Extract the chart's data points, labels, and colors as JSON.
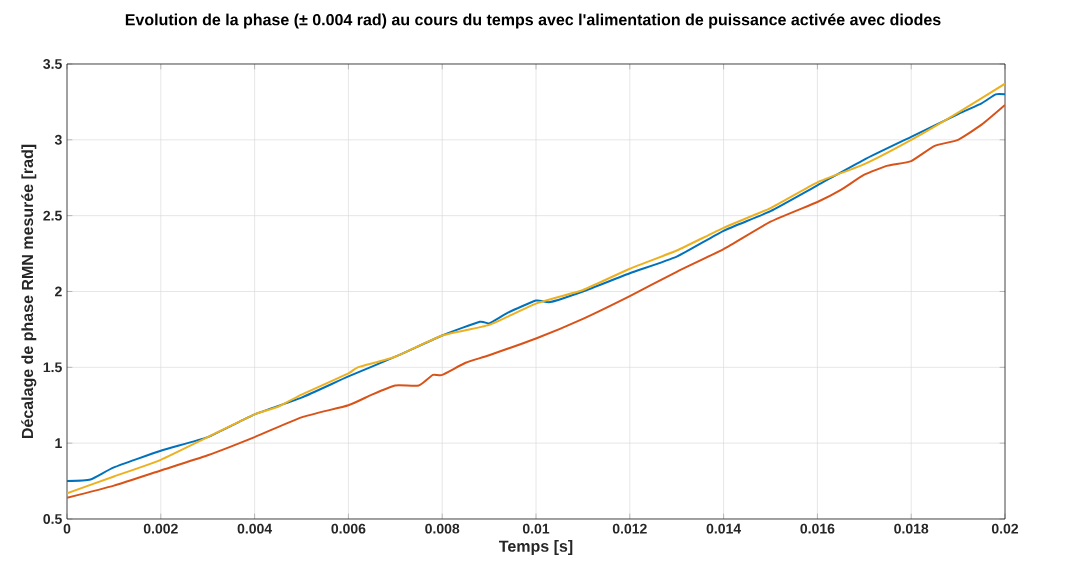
{
  "chart_data": {
    "type": "line",
    "title": "Evolution de la phase (± 0.004 rad) au cours du temps avec l'alimentation de puissance activée avec diodes",
    "xlabel": "Temps [s]",
    "ylabel": "Décalage de phase RMN mesurée [rad]",
    "xlim": [
      0,
      0.02
    ],
    "ylim": [
      0.5,
      3.5
    ],
    "xticks": [
      0,
      0.002,
      0.004,
      0.006,
      0.008,
      0.01,
      0.012,
      0.014,
      0.016,
      0.018,
      0.02
    ],
    "yticks": [
      0.5,
      1,
      1.5,
      2,
      2.5,
      3,
      3.5
    ],
    "grid": true,
    "line_style": "solid",
    "series": [
      {
        "color": "#0072bd",
        "x": [
          0,
          0.0005,
          0.001,
          0.002,
          0.003,
          0.004,
          0.005,
          0.006,
          0.007,
          0.008,
          0.0088,
          0.009,
          0.0094,
          0.01,
          0.0103,
          0.011,
          0.012,
          0.013,
          0.014,
          0.015,
          0.016,
          0.017,
          0.018,
          0.019,
          0.0195,
          0.0198,
          0.02
        ],
        "values": [
          0.75,
          0.76,
          0.84,
          0.95,
          1.04,
          1.19,
          1.3,
          1.44,
          1.57,
          1.71,
          1.8,
          1.79,
          1.86,
          1.94,
          1.93,
          2.0,
          2.12,
          2.23,
          2.4,
          2.53,
          2.7,
          2.87,
          3.02,
          3.17,
          3.24,
          3.3,
          3.3
        ]
      },
      {
        "color": "#d95319",
        "x": [
          0,
          0.001,
          0.002,
          0.003,
          0.004,
          0.005,
          0.006,
          0.0065,
          0.007,
          0.0075,
          0.0078,
          0.008,
          0.0085,
          0.009,
          0.01,
          0.011,
          0.012,
          0.013,
          0.014,
          0.015,
          0.016,
          0.0165,
          0.017,
          0.0175,
          0.018,
          0.0185,
          0.019,
          0.0195,
          0.02
        ],
        "values": [
          0.64,
          0.72,
          0.82,
          0.92,
          1.04,
          1.17,
          1.25,
          1.32,
          1.38,
          1.38,
          1.45,
          1.45,
          1.53,
          1.58,
          1.69,
          1.82,
          1.97,
          2.13,
          2.28,
          2.46,
          2.59,
          2.67,
          2.77,
          2.83,
          2.86,
          2.96,
          3.0,
          3.1,
          3.23
        ]
      },
      {
        "color": "#edb120",
        "x": [
          0,
          0.001,
          0.002,
          0.003,
          0.004,
          0.0045,
          0.005,
          0.006,
          0.0062,
          0.007,
          0.008,
          0.009,
          0.01,
          0.011,
          0.012,
          0.013,
          0.014,
          0.015,
          0.016,
          0.017,
          0.018,
          0.019,
          0.02
        ],
        "values": [
          0.67,
          0.78,
          0.89,
          1.04,
          1.19,
          1.24,
          1.32,
          1.46,
          1.5,
          1.57,
          1.71,
          1.78,
          1.92,
          2.01,
          2.15,
          2.27,
          2.42,
          2.55,
          2.72,
          2.84,
          3.0,
          3.18,
          3.37
        ]
      }
    ]
  }
}
